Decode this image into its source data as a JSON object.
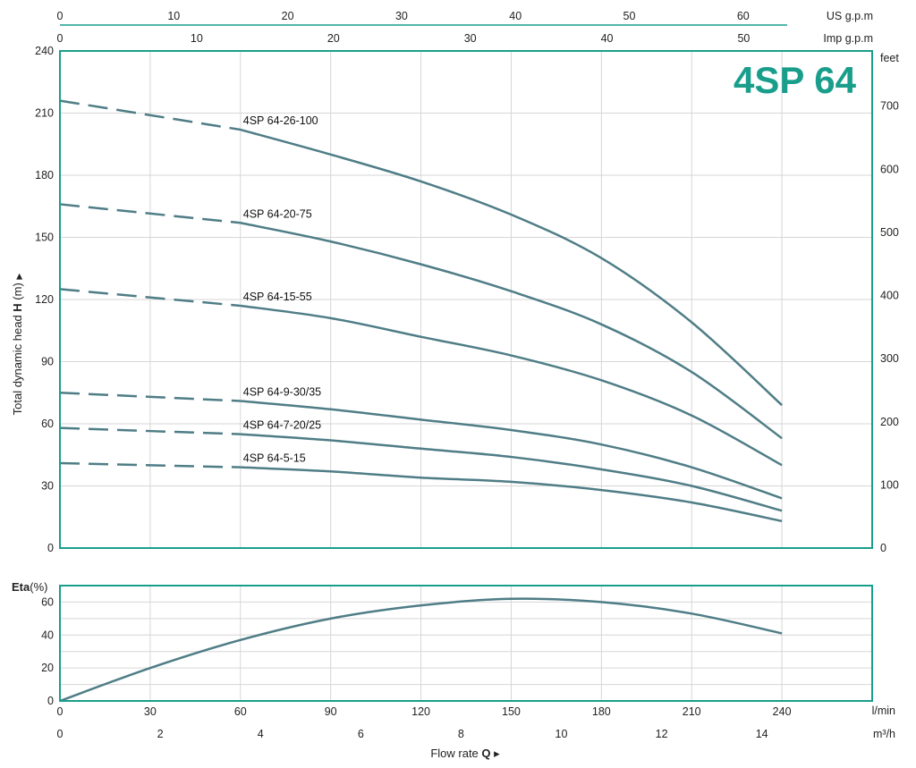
{
  "colors": {
    "frame": "#1a9e8c",
    "curve": "#4f7d86",
    "grid": "#d6d6d6",
    "title": "#1a9e8c"
  },
  "chart_data": {
    "type": "line",
    "title": "4SP 64",
    "top_axes": [
      {
        "unit": "US g.p.m",
        "ticks": [
          "0",
          "10",
          "20",
          "30",
          "40",
          "50",
          "60"
        ],
        "values": [
          0,
          10,
          20,
          30,
          40,
          50,
          60
        ],
        "max": 63.4
      },
      {
        "unit": "Imp g.p.m",
        "ticks": [
          "0",
          "10",
          "20",
          "30",
          "40",
          "50"
        ],
        "values": [
          0,
          10,
          20,
          30,
          40,
          50
        ],
        "max": 52.8
      }
    ],
    "head_chart": {
      "ylabel_text": "Total dynamic head",
      "ylabel_symbol": "H",
      "ylabel_unit": "(m)",
      "ylabel_arrow": "▶",
      "ylim": [
        0,
        240
      ],
      "yticks": [
        "0",
        "30",
        "60",
        "90",
        "120",
        "150",
        "180",
        "210",
        "240"
      ],
      "right_unit": "feet",
      "right_ticks": [
        "0",
        "100",
        "200",
        "300",
        "400",
        "500",
        "600",
        "700"
      ],
      "series": [
        {
          "name": "4SP 64-26-100",
          "dashed": {
            "x": [
              0,
              60
            ],
            "y": [
              216,
              202
            ]
          },
          "solid": {
            "x": [
              60,
              90,
              120,
              150,
              180,
              210,
              240
            ],
            "y": [
              202,
              190,
              177,
              161,
              140,
              109,
              69
            ]
          }
        },
        {
          "name": "4SP 64-20-75",
          "dashed": {
            "x": [
              0,
              60
            ],
            "y": [
              166,
              157
            ]
          },
          "solid": {
            "x": [
              60,
              90,
              120,
              150,
              180,
              210,
              240
            ],
            "y": [
              157,
              148,
              137,
              124,
              108,
              85,
              53
            ]
          }
        },
        {
          "name": "4SP 64-15-55",
          "dashed": {
            "x": [
              0,
              60
            ],
            "y": [
              125,
              117
            ]
          },
          "solid": {
            "x": [
              60,
              90,
              120,
              150,
              180,
              210,
              240
            ],
            "y": [
              117,
              111,
              102,
              93,
              81,
              64,
              40
            ]
          }
        },
        {
          "name": "4SP 64-9-30/35",
          "dashed": {
            "x": [
              0,
              60
            ],
            "y": [
              75,
              71
            ]
          },
          "solid": {
            "x": [
              60,
              90,
              120,
              150,
              180,
              210,
              240
            ],
            "y": [
              71,
              67,
              62,
              57,
              50,
              39,
              24
            ]
          }
        },
        {
          "name": "4SP 64-7-20/25",
          "dashed": {
            "x": [
              0,
              60
            ],
            "y": [
              58,
              55
            ]
          },
          "solid": {
            "x": [
              60,
              90,
              120,
              150,
              180,
              210,
              240
            ],
            "y": [
              55,
              52,
              48,
              44,
              38,
              30,
              18
            ]
          }
        },
        {
          "name": "4SP 64-5-15",
          "dashed": {
            "x": [
              0,
              60
            ],
            "y": [
              41,
              39
            ]
          },
          "solid": {
            "x": [
              60,
              90,
              120,
              150,
              180,
              210,
              240
            ],
            "y": [
              39,
              37,
              34,
              32,
              28,
              22,
              13
            ]
          }
        }
      ]
    },
    "eta_chart": {
      "ylabel_text": "Eta",
      "ylabel_unit": "(%)",
      "ylim": [
        0,
        70
      ],
      "yticks": [
        "0",
        "20",
        "40",
        "60"
      ],
      "series": {
        "x": [
          0,
          30,
          60,
          90,
          120,
          150,
          180,
          210,
          240
        ],
        "y": [
          0,
          20,
          37,
          50,
          58,
          62,
          60,
          53,
          41
        ]
      }
    },
    "x_axis": {
      "unit": "l/min",
      "ticks": [
        "0",
        "30",
        "60",
        "90",
        "120",
        "150",
        "180",
        "210",
        "240"
      ],
      "values": [
        0,
        30,
        60,
        90,
        120,
        150,
        180,
        210,
        240
      ],
      "xlim": [
        0,
        270
      ]
    },
    "x_axis2": {
      "unit": "m³/h",
      "ticks": [
        "0",
        "2",
        "4",
        "6",
        "8",
        "10",
        "12",
        "14"
      ],
      "values": [
        0,
        2,
        4,
        6,
        8,
        10,
        12,
        14
      ]
    },
    "xlabel_text": "Flow  rate",
    "xlabel_symbol": "Q",
    "xlabel_arrow": "▸"
  }
}
